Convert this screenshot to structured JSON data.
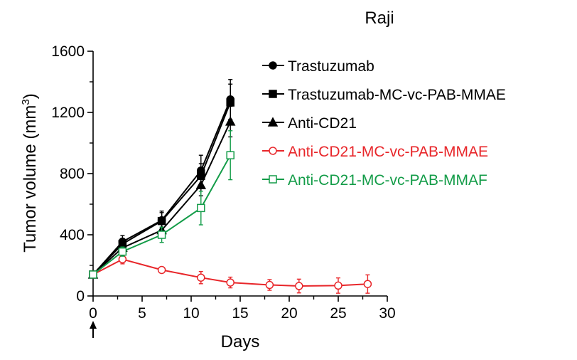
{
  "chart_data": {
    "type": "line",
    "title": "Raji",
    "xlabel": "Days",
    "ylabel_main": "Tumor volume (mm",
    "ylabel_sup": "3",
    "ylabel_close": ")",
    "xlim": [
      0,
      30
    ],
    "ylim": [
      0,
      1600
    ],
    "xticks": [
      0,
      5,
      10,
      15,
      20,
      25,
      30
    ],
    "yticks": [
      0,
      400,
      800,
      1200,
      1600
    ],
    "dosing_day": 0,
    "series": [
      {
        "name": "Trastuzumab",
        "color": "#000000",
        "marker": "circle",
        "filled": true,
        "x": [
          0,
          3,
          7,
          11,
          14
        ],
        "y": [
          140,
          355,
          495,
          820,
          1285
        ],
        "err": [
          15,
          40,
          60,
          100,
          130
        ]
      },
      {
        "name": "Trastuzumab-MC-vc-PAB-MMAE",
        "color": "#000000",
        "marker": "square",
        "filled": true,
        "x": [
          0,
          3,
          7,
          11,
          14
        ],
        "y": [
          140,
          340,
          490,
          785,
          1265
        ],
        "err": [
          15,
          35,
          55,
          80,
          120
        ]
      },
      {
        "name": "Anti-CD21",
        "color": "#000000",
        "marker": "triangle",
        "filled": true,
        "x": [
          0,
          3,
          7,
          11,
          14
        ],
        "y": [
          140,
          315,
          430,
          725,
          1140
        ],
        "err": [
          15,
          30,
          45,
          70,
          100
        ]
      },
      {
        "name": "Anti-CD21-MC-vc-PAB-MMAE",
        "color": "#e8262a",
        "marker": "circle",
        "filled": false,
        "x": [
          0,
          3,
          7,
          11,
          14,
          18,
          21,
          25,
          28
        ],
        "y": [
          140,
          240,
          170,
          120,
          88,
          72,
          65,
          68,
          78
        ],
        "err": [
          15,
          30,
          20,
          40,
          35,
          35,
          45,
          50,
          60
        ]
      },
      {
        "name": "Anti-CD21-MC-vc-PAB-MMAF",
        "color": "#139c48",
        "marker": "square",
        "filled": false,
        "x": [
          0,
          3,
          7,
          11,
          14
        ],
        "y": [
          140,
          290,
          400,
          575,
          920
        ],
        "err": [
          15,
          30,
          50,
          110,
          160
        ]
      }
    ]
  }
}
